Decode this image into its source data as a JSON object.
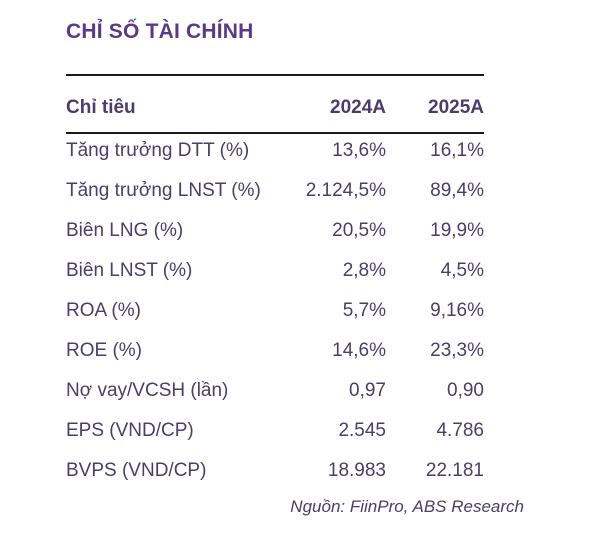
{
  "title": "CHỈ SỐ TÀI CHÍNH",
  "header": {
    "indicator": "Chỉ tiêu",
    "col1": "2024A",
    "col2": "2025A"
  },
  "rows": [
    {
      "label": "Tăng trưởng DTT (%)",
      "v2024": "13,6%",
      "v2025": "16,1%"
    },
    {
      "label": "Tăng trưởng LNST (%)",
      "v2024": "2.124,5%",
      "v2025": "89,4%"
    },
    {
      "label": "Biên LNG (%)",
      "v2024": "20,5%",
      "v2025": "19,9%"
    },
    {
      "label": "Biên LNST (%)",
      "v2024": "2,8%",
      "v2025": "4,5%"
    },
    {
      "label": "ROA (%)",
      "v2024": "5,7%",
      "v2025": "9,16%"
    },
    {
      "label": "ROE (%)",
      "v2024": "14,6%",
      "v2025": "23,3%"
    },
    {
      "label": "Nợ vay/VCSH (lần)",
      "v2024": "0,97",
      "v2025": "0,90"
    },
    {
      "label": "EPS (VND/CP)",
      "v2024": "2.545",
      "v2025": "4.786"
    },
    {
      "label": "BVPS (VND/CP)",
      "v2024": "18.983",
      "v2025": "22.181"
    }
  ],
  "source": "Nguồn: FiinPro, ABS Research"
}
